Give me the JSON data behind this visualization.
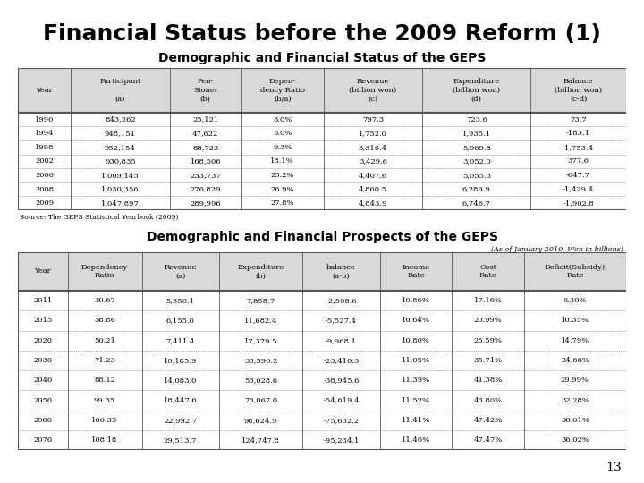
{
  "title": "Financial Status before the 2009 Reform (1)",
  "subtitle1": "Demographic and Financial Status of the GEPS",
  "subtitle2": "Demographic and Financial Prospects of the GEPS",
  "subtitle2_note": "(As of January 2010, Won in billions)",
  "source_note": "Source: The GEPS Statistical Yearbook (2009)",
  "page_number": "13",
  "table1_headers": [
    "Year",
    "Participant\n\n(a)",
    "Pen-\nSioner\n(b)",
    "Depen-\ndency Ratio\n(b/a)",
    "Revenue\n(billion won)\n(c)",
    "Expenditure\n(billion won)\n(d)",
    "Balance\n(billion won)\n(c-d)"
  ],
  "table1_data": [
    [
      "1990",
      "843,262",
      "25,121",
      "3.0%",
      "797.3",
      "723.6",
      "73.7"
    ],
    [
      "1994",
      "948,151",
      "47,622",
      "5.0%",
      "1,752.0",
      "1,935.1",
      "-183.1"
    ],
    [
      "1998",
      "952,154",
      "88,723",
      "9.3%",
      "3,316.4",
      "5,069.8",
      "-1,753.4"
    ],
    [
      "2002",
      "930,835",
      "168,506",
      "18.1%",
      "3,429.6",
      "3,052.0",
      "377.6"
    ],
    [
      "2006",
      "1,009,145",
      "233,737",
      "23.2%",
      "4,407.6",
      "5,055.3",
      "-647.7"
    ],
    [
      "2008",
      "1,030,356",
      "276,829",
      "26.9%",
      "4,860.5",
      "6,289.9",
      "-1,429.4"
    ],
    [
      "2009",
      "1,047,897",
      "289,996",
      "27.8%",
      "4,843.9",
      "6,746.7",
      "-1,902.8"
    ]
  ],
  "table2_headers": [
    "Year",
    "Dependency\nRatio",
    "Revenue\n(a)",
    "Expenditure\n(b)",
    "balance\n(a-b)",
    "Income\nRate",
    "Cost\nRate",
    "Deficit(Subsidy)\nRate"
  ],
  "table2_data": [
    [
      "2011",
      "30.67",
      "5,350.1",
      "7,858.7",
      "-2,508.6",
      "10.86%",
      "17.16%",
      "6.30%"
    ],
    [
      "2015",
      "38.86",
      "6,155.0",
      "11,682.4",
      "-5,527.4",
      "10.64%",
      "20.99%",
      "10.35%"
    ],
    [
      "2020",
      "50.21",
      "7,411.4",
      "17,379.5",
      "-9,968.1",
      "10.80%",
      "25.59%",
      "14.79%"
    ],
    [
      "2030",
      "71.23",
      "10,185.9",
      "33,596.2",
      "-23,410.3",
      "11.05%",
      "35.71%",
      "24.66%"
    ],
    [
      "2040",
      "88.12",
      "14,083.0",
      "53,028.6",
      "-38,945.6",
      "11.39%",
      "41.38%",
      "29.99%"
    ],
    [
      "2050",
      "99.35",
      "18,447.6",
      "73,067.0",
      "-54,619.4",
      "11.52%",
      "43.80%",
      "32.28%"
    ],
    [
      "2060",
      "106.35",
      "22,992.7",
      "98,624.9",
      "-75,632.2",
      "11.41%",
      "47.42%",
      "36.01%"
    ],
    [
      "2070",
      "108.18",
      "29,513.7",
      "124,747.8",
      "-95,234.1",
      "11.46%",
      "47.47%",
      "36.02%"
    ]
  ],
  "bg_color": "#ffffff",
  "header_bg": "#d9d9d9",
  "border_color": "#555555",
  "text_color": "#000000",
  "title_fontsize": 18,
  "subtitle_fontsize": 10,
  "cell_fontsize": 6.0,
  "source_fontsize": 5.5,
  "note_fontsize": 5.8
}
